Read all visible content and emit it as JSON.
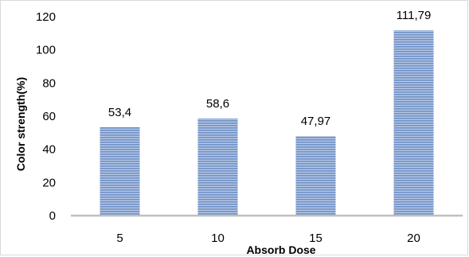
{
  "chart_data": {
    "type": "bar",
    "title": "",
    "xlabel": "Absorb Dose",
    "ylabel": "Color strength(%)",
    "categories": [
      "5",
      "10",
      "15",
      "20"
    ],
    "values": [
      53.4,
      58.6,
      47.97,
      111.79
    ],
    "data_labels": [
      "53,4",
      "58,6",
      "47,97",
      "111,79"
    ],
    "ylim": [
      0,
      120
    ],
    "yticks": [
      "0",
      "20",
      "40",
      "60",
      "80",
      "100",
      "120"
    ],
    "grid": false,
    "legend": "none",
    "bar_color": "#6f8fc4",
    "bar_stripe_color": "#b7c9e6"
  }
}
